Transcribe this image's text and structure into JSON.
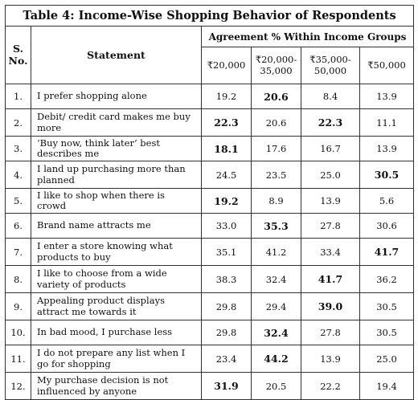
{
  "table": {
    "title": "Table 4: Income-Wise Shopping Behavior of Respondents",
    "group_header": "Agreement % Within Income Groups",
    "sno_header": "S. No.",
    "statement_header": "Statement",
    "income_headers": [
      "₹20,000",
      "₹20,000-35,000",
      "₹35,000-50,000",
      "₹50,000"
    ],
    "rows": [
      {
        "no": "1.",
        "statement": "I prefer shopping alone",
        "values": [
          "19.2",
          "20.6",
          "8.4",
          "13.9"
        ],
        "bold_index": 1
      },
      {
        "no": "2.",
        "statement": "Debit/ credit card makes me buy more",
        "values": [
          "22.3",
          "20.6",
          "22.3",
          "11.1"
        ],
        "bold_index": [
          0,
          2
        ]
      },
      {
        "no": "3.",
        "statement": "‘Buy now, think later’ best describes me",
        "values": [
          "18.1",
          "17.6",
          "16.7",
          "13.9"
        ],
        "bold_index": 0
      },
      {
        "no": "4.",
        "statement": "I land up purchasing more than planned",
        "values": [
          "24.5",
          "23.5",
          "25.0",
          "30.5"
        ],
        "bold_index": 3
      },
      {
        "no": "5.",
        "statement": "I like to shop when there is crowd",
        "values": [
          "19.2",
          "8.9",
          "13.9",
          "5.6"
        ],
        "bold_index": 0
      },
      {
        "no": "6.",
        "statement": "Brand name attracts me",
        "values": [
          "33.0",
          "35.3",
          "27.8",
          "30.6"
        ],
        "bold_index": 1
      },
      {
        "no": "7.",
        "statement": "I enter a store knowing what products to buy",
        "values": [
          "35.1",
          "41.2",
          "33.4",
          "41.7"
        ],
        "bold_index": 3
      },
      {
        "no": "8.",
        "statement": "I like to choose from a wide variety of products",
        "values": [
          "38.3",
          "32.4",
          "41.7",
          "36.2"
        ],
        "bold_index": 2
      },
      {
        "no": "9.",
        "statement": "Appealing product displays attract me towards it",
        "values": [
          "29.8",
          "29.4",
          "39.0",
          "30.5"
        ],
        "bold_index": 2
      },
      {
        "no": "10.",
        "statement": "In bad mood, I purchase less",
        "values": [
          "29.8",
          "32.4",
          "27.8",
          "30.5"
        ],
        "bold_index": 1
      },
      {
        "no": "11.",
        "statement": "I do not prepare any list when I go for shopping",
        "values": [
          "23.4",
          "44.2",
          "13.9",
          "25.0"
        ],
        "bold_index": 1
      },
      {
        "no": "12.",
        "statement": "My purchase decision is not influenced by anyone",
        "values": [
          "31.9",
          "20.5",
          "22.2",
          "19.4"
        ],
        "bold_index": 0
      }
    ]
  }
}
